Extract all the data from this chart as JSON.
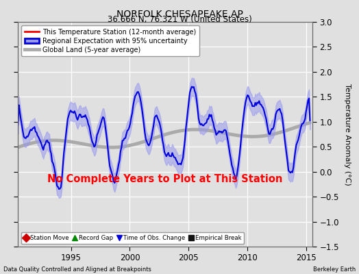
{
  "title": "NORFOLK CHESAPEAKE AP",
  "subtitle": "36.666 N, 76.321 W (United States)",
  "xlabel_left": "Data Quality Controlled and Aligned at Breakpoints",
  "xlabel_right": "Berkeley Earth",
  "ylabel": "Temperature Anomaly (°C)",
  "no_data_text": "No Complete Years to Plot at This Station",
  "xlim": [
    1990.5,
    2015.5
  ],
  "ylim": [
    -1.5,
    3.0
  ],
  "yticks": [
    -1.5,
    -1.0,
    -0.5,
    0.0,
    0.5,
    1.0,
    1.5,
    2.0,
    2.5,
    3.0
  ],
  "xticks": [
    1995,
    2000,
    2005,
    2010,
    2015
  ],
  "bg_color": "#e0e0e0",
  "plot_bg_color": "#e0e0e0",
  "grid_color": "#ffffff",
  "station_line_color": "#ff0000",
  "regional_line_color": "#0000dd",
  "regional_fill_color": "#9999ee",
  "global_line_color": "#aaaaaa",
  "no_data_color": "#ff0000",
  "legend_items": [
    {
      "label": "This Temperature Station (12-month average)",
      "color": "#ff0000",
      "lw": 2
    },
    {
      "label": "Regional Expectation with 95% uncertainty",
      "color": "#0000dd",
      "fill": "#9999ee",
      "lw": 2
    },
    {
      "label": "Global Land (5-year average)",
      "color": "#aaaaaa",
      "lw": 3
    }
  ],
  "marker_legend": [
    {
      "label": "Station Move",
      "color": "#cc0000",
      "marker": "D"
    },
    {
      "label": "Record Gap",
      "color": "#008800",
      "marker": "^"
    },
    {
      "label": "Time of Obs. Change",
      "color": "#0000dd",
      "marker": "v"
    },
    {
      "label": "Empirical Break",
      "color": "#111111",
      "marker": "s"
    }
  ]
}
